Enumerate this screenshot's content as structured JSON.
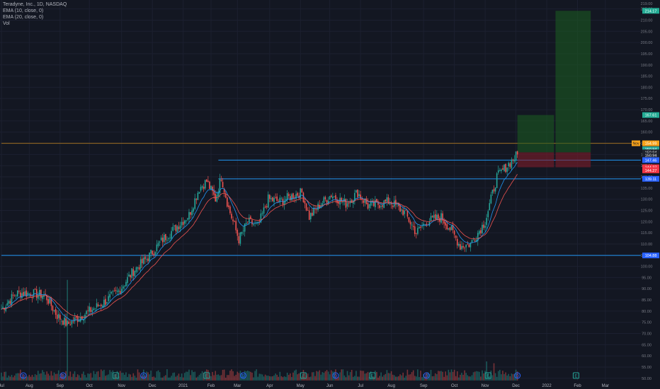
{
  "legend": {
    "symbol": "Teradyne, Inc., 1D, NASDAQ",
    "ema10": "EMA (10, close, 0)",
    "ema20": "EMA (20, close, 0)",
    "vol": "Vol"
  },
  "axis_prices": [
    "215.00",
    "210.00",
    "205.00",
    "200.00",
    "195.00",
    "190.00",
    "185.00",
    "180.00",
    "175.00",
    "170.00",
    "165.00",
    "160.00",
    "155.00",
    "150.00",
    "145.00",
    "140.00",
    "135.00",
    "130.00",
    "125.00",
    "120.00",
    "115.00",
    "110.00",
    "105.00",
    "100.00",
    "95.00",
    "90.00",
    "85.00",
    "80.00",
    "75.00",
    "70.00",
    "65.00",
    "60.00",
    "55.00",
    "50.00"
  ],
  "axis_top_label": "219.00",
  "time_labels": [
    {
      "label": "Jul",
      "idx": 0
    },
    {
      "label": "Aug",
      "idx": 19
    },
    {
      "label": "Sep",
      "idx": 40
    },
    {
      "label": "Oct",
      "idx": 60
    },
    {
      "label": "Nov",
      "idx": 82
    },
    {
      "label": "Dec",
      "idx": 103
    },
    {
      "label": "2021",
      "idx": 124
    },
    {
      "label": "Feb",
      "idx": 143
    },
    {
      "label": "Mar",
      "idx": 161
    },
    {
      "label": "Apr",
      "idx": 183
    },
    {
      "label": "May",
      "idx": 204
    },
    {
      "label": "Jun",
      "idx": 224
    },
    {
      "label": "Jul",
      "idx": 245
    },
    {
      "label": "Aug",
      "idx": 266
    },
    {
      "label": "Sep",
      "idx": 288
    },
    {
      "label": "Oct",
      "idx": 309
    },
    {
      "label": "Nov",
      "idx": 330
    },
    {
      "label": "Dec",
      "idx": 351
    },
    {
      "label": "2022",
      "idx": 372
    },
    {
      "label": "Feb",
      "idx": 393
    },
    {
      "label": "Mar",
      "idx": 412
    }
  ],
  "price_tags": [
    {
      "text": "214.17",
      "price": 214.17,
      "color": "#22ab94"
    },
    {
      "text": "167.61",
      "price": 167.61,
      "color": "#22ab94"
    },
    {
      "text": "154.99",
      "price": 154.99,
      "color": "#f7a21b"
    },
    {
      "text": "150.94",
      "price": 152.3,
      "color": "#26a69a"
    },
    {
      "text": "150.94",
      "price": 150.94,
      "color": "#1e222d"
    },
    {
      "text": "150.94",
      "price": 149.6,
      "color": "#1e222d"
    },
    {
      "text": "147.46",
      "price": 147.46,
      "color": "#2962ff"
    },
    {
      "text": "144.27",
      "price": 144.27,
      "color": "#f23645"
    },
    {
      "text": "144.27",
      "price": 142.9,
      "color": "#f23645"
    },
    {
      "text": "139.11",
      "price": 139.11,
      "color": "#2962ff"
    },
    {
      "text": "104.88",
      "price": 104.88,
      "color": "#2962ff"
    }
  ],
  "nav_badge": "Nov",
  "levels": [
    {
      "name": "resistance-147",
      "price": 147.46,
      "from_idx": 148,
      "color": "#2196f3"
    },
    {
      "name": "level-139",
      "price": 139.11,
      "from_idx": 148,
      "color": "#2196f3"
    },
    {
      "name": "support-104",
      "price": 104.88,
      "from_idx": 0,
      "color": "#2196f3"
    },
    {
      "name": "entry-line",
      "price": 154.99,
      "from_idx": 0,
      "color": "#f7a21b"
    }
  ],
  "positions": [
    {
      "entry": 150.94,
      "target": 167.61,
      "stop": 144.27,
      "from_idx": 352,
      "to_idx": 377
    },
    {
      "entry": 150.94,
      "target": 214.17,
      "stop": 144.27,
      "from_idx": 378,
      "to_idx": 402
    }
  ],
  "event_markers": [
    {
      "idx": 15,
      "type": "D"
    },
    {
      "idx": 42,
      "type": "D"
    },
    {
      "idx": 78,
      "type": "E"
    },
    {
      "idx": 97,
      "type": "D"
    },
    {
      "idx": 140,
      "type": "E"
    },
    {
      "idx": 165,
      "type": "D"
    },
    {
      "idx": 206,
      "type": "E"
    },
    {
      "idx": 228,
      "type": "D"
    },
    {
      "idx": 253,
      "type": "E"
    },
    {
      "idx": 290,
      "type": "D"
    },
    {
      "idx": 332,
      "type": "E"
    },
    {
      "idx": 352,
      "type": "D"
    },
    {
      "idx": 392,
      "type": "E"
    }
  ],
  "colors": {
    "up": "#26a69a",
    "down": "#ef5350",
    "ema10": "#2196f3",
    "ema20": "#ef5350",
    "bg": "#131722",
    "grid": "#1c2030"
  },
  "chart_data": {
    "type": "candlestick",
    "title": "Teradyne, Inc., 1D, NASDAQ",
    "y_range": [
      49,
      219
    ],
    "anchors": [
      [
        0,
        81
      ],
      [
        10,
        88
      ],
      [
        20,
        88
      ],
      [
        30,
        87
      ],
      [
        38,
        78
      ],
      [
        45,
        74
      ],
      [
        55,
        78
      ],
      [
        70,
        84
      ],
      [
        80,
        89
      ],
      [
        90,
        98
      ],
      [
        100,
        104
      ],
      [
        110,
        112
      ],
      [
        120,
        118
      ],
      [
        128,
        123
      ],
      [
        135,
        135
      ],
      [
        140,
        138
      ],
      [
        146,
        130
      ],
      [
        150,
        140
      ],
      [
        155,
        126
      ],
      [
        162,
        112
      ],
      [
        168,
        120
      ],
      [
        175,
        118
      ],
      [
        182,
        130
      ],
      [
        190,
        129
      ],
      [
        200,
        132
      ],
      [
        205,
        133
      ],
      [
        210,
        122
      ],
      [
        218,
        128
      ],
      [
        225,
        132
      ],
      [
        235,
        128
      ],
      [
        243,
        133
      ],
      [
        250,
        127
      ],
      [
        258,
        128
      ],
      [
        265,
        129
      ],
      [
        275,
        124
      ],
      [
        283,
        115
      ],
      [
        290,
        120
      ],
      [
        300,
        122
      ],
      [
        307,
        116
      ],
      [
        313,
        109
      ],
      [
        320,
        110
      ],
      [
        330,
        120
      ],
      [
        338,
        140
      ],
      [
        345,
        145
      ],
      [
        352,
        150
      ]
    ],
    "ema_labels": [
      "EMA 10",
      "EMA 20"
    ]
  }
}
